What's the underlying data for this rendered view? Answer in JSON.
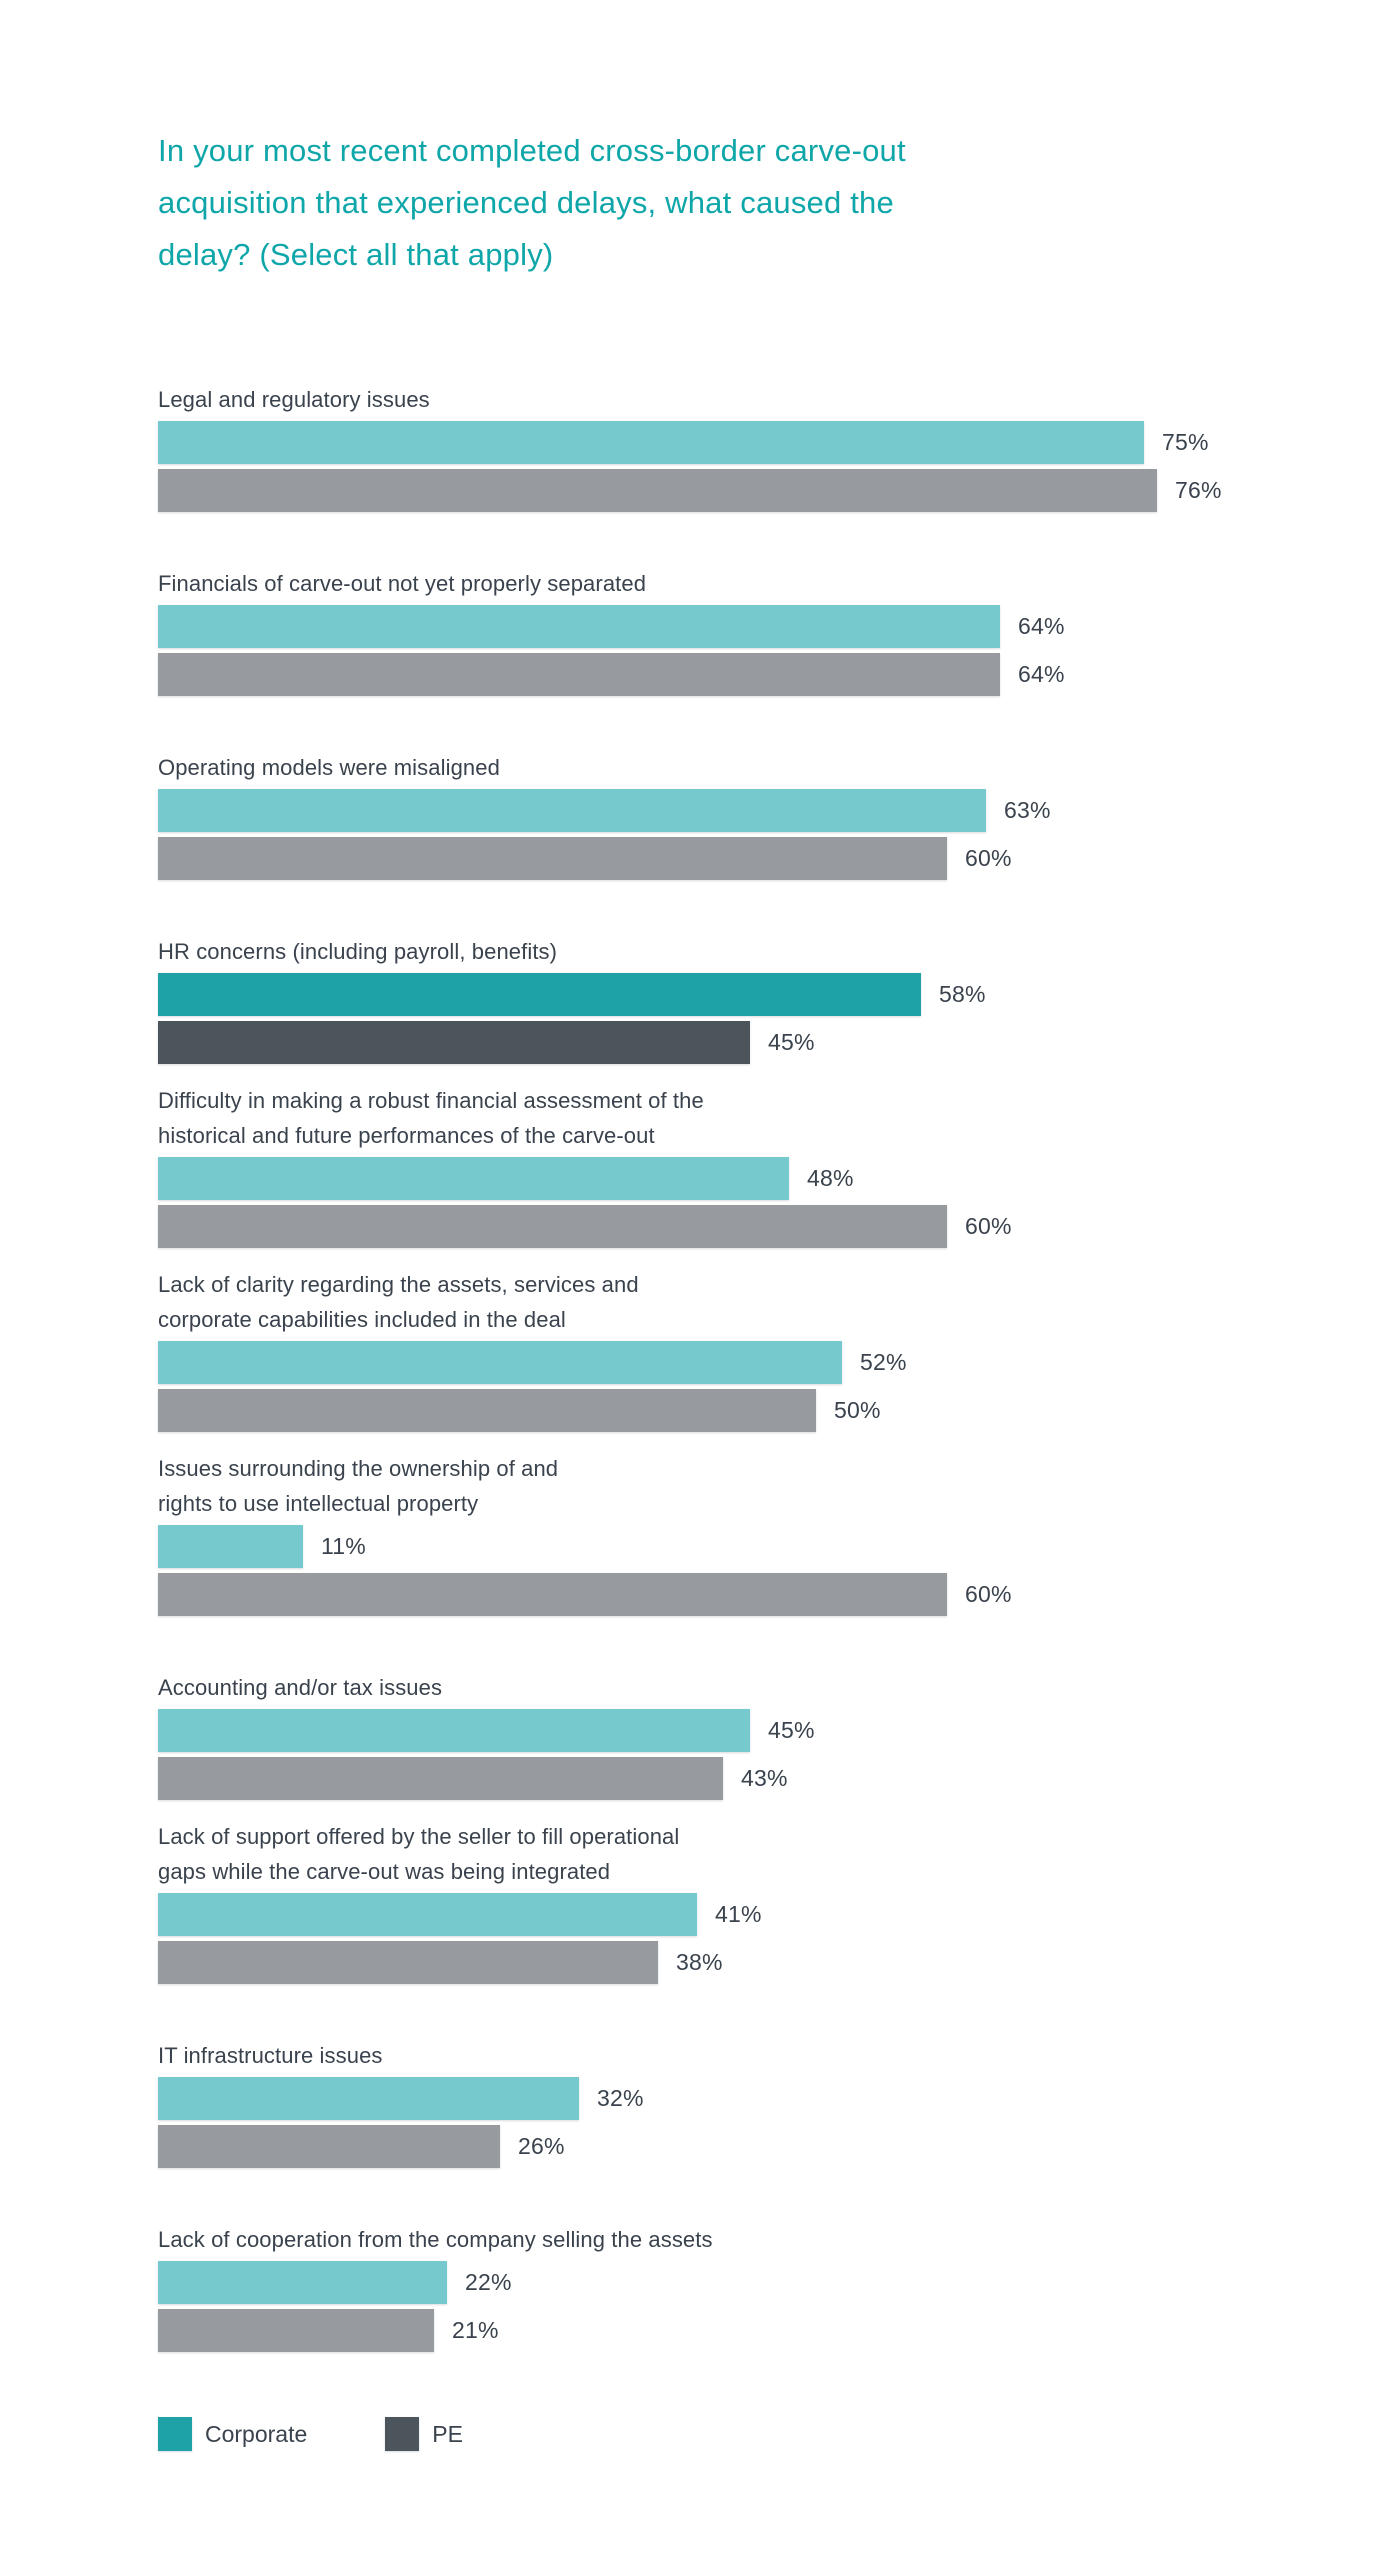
{
  "colors": {
    "title": "#0FA6A9",
    "text": "#3A434D",
    "corporate": "#76C9CC",
    "pe": "#979BA0",
    "corporate_highlight": "#1EA2A7",
    "pe_highlight": "#4C555C"
  },
  "chart_data": {
    "type": "bar",
    "orientation": "horizontal",
    "title": "In your most recent completed cross-border carve-out\nacquisition that experienced delays, what caused the\ndelay? (Select all that apply)",
    "xlabel": "",
    "ylabel": "",
    "value_unit": "%",
    "xlim": [
      0,
      100
    ],
    "grid": false,
    "value_labels": true,
    "legend_position": "bottom-left",
    "categories": [
      "Legal and regulatory issues",
      "Financials of carve-out not yet properly separated",
      "Operating models were misaligned",
      "HR concerns (including payroll, benefits)",
      "Difficulty in making a robust financial assessment of the\nhistorical and future performances of the carve-out",
      "Lack of clarity regarding the assets, services and\ncorporate capabilities included in the deal",
      "Issues surrounding the ownership of and\nrights to use intellectual property",
      "Accounting and/or tax issues",
      "Lack of support offered by the seller to fill operational\ngaps while the carve-out was being integrated",
      "IT infrastructure issues",
      "Lack of cooperation from the company selling the assets"
    ],
    "series": [
      {
        "name": "Corporate",
        "values": [
          75,
          64,
          63,
          58,
          48,
          52,
          11,
          45,
          41,
          32,
          22
        ],
        "color": "#76C9CC",
        "highlight_color": "#1EA2A7"
      },
      {
        "name": "PE",
        "values": [
          76,
          64,
          60,
          45,
          60,
          50,
          60,
          43,
          38,
          26,
          21
        ],
        "color": "#979BA0",
        "highlight_color": "#4C555C"
      }
    ],
    "highlighted_index": 3,
    "highlighted_category": "HR concerns (including payroll, benefits)"
  }
}
